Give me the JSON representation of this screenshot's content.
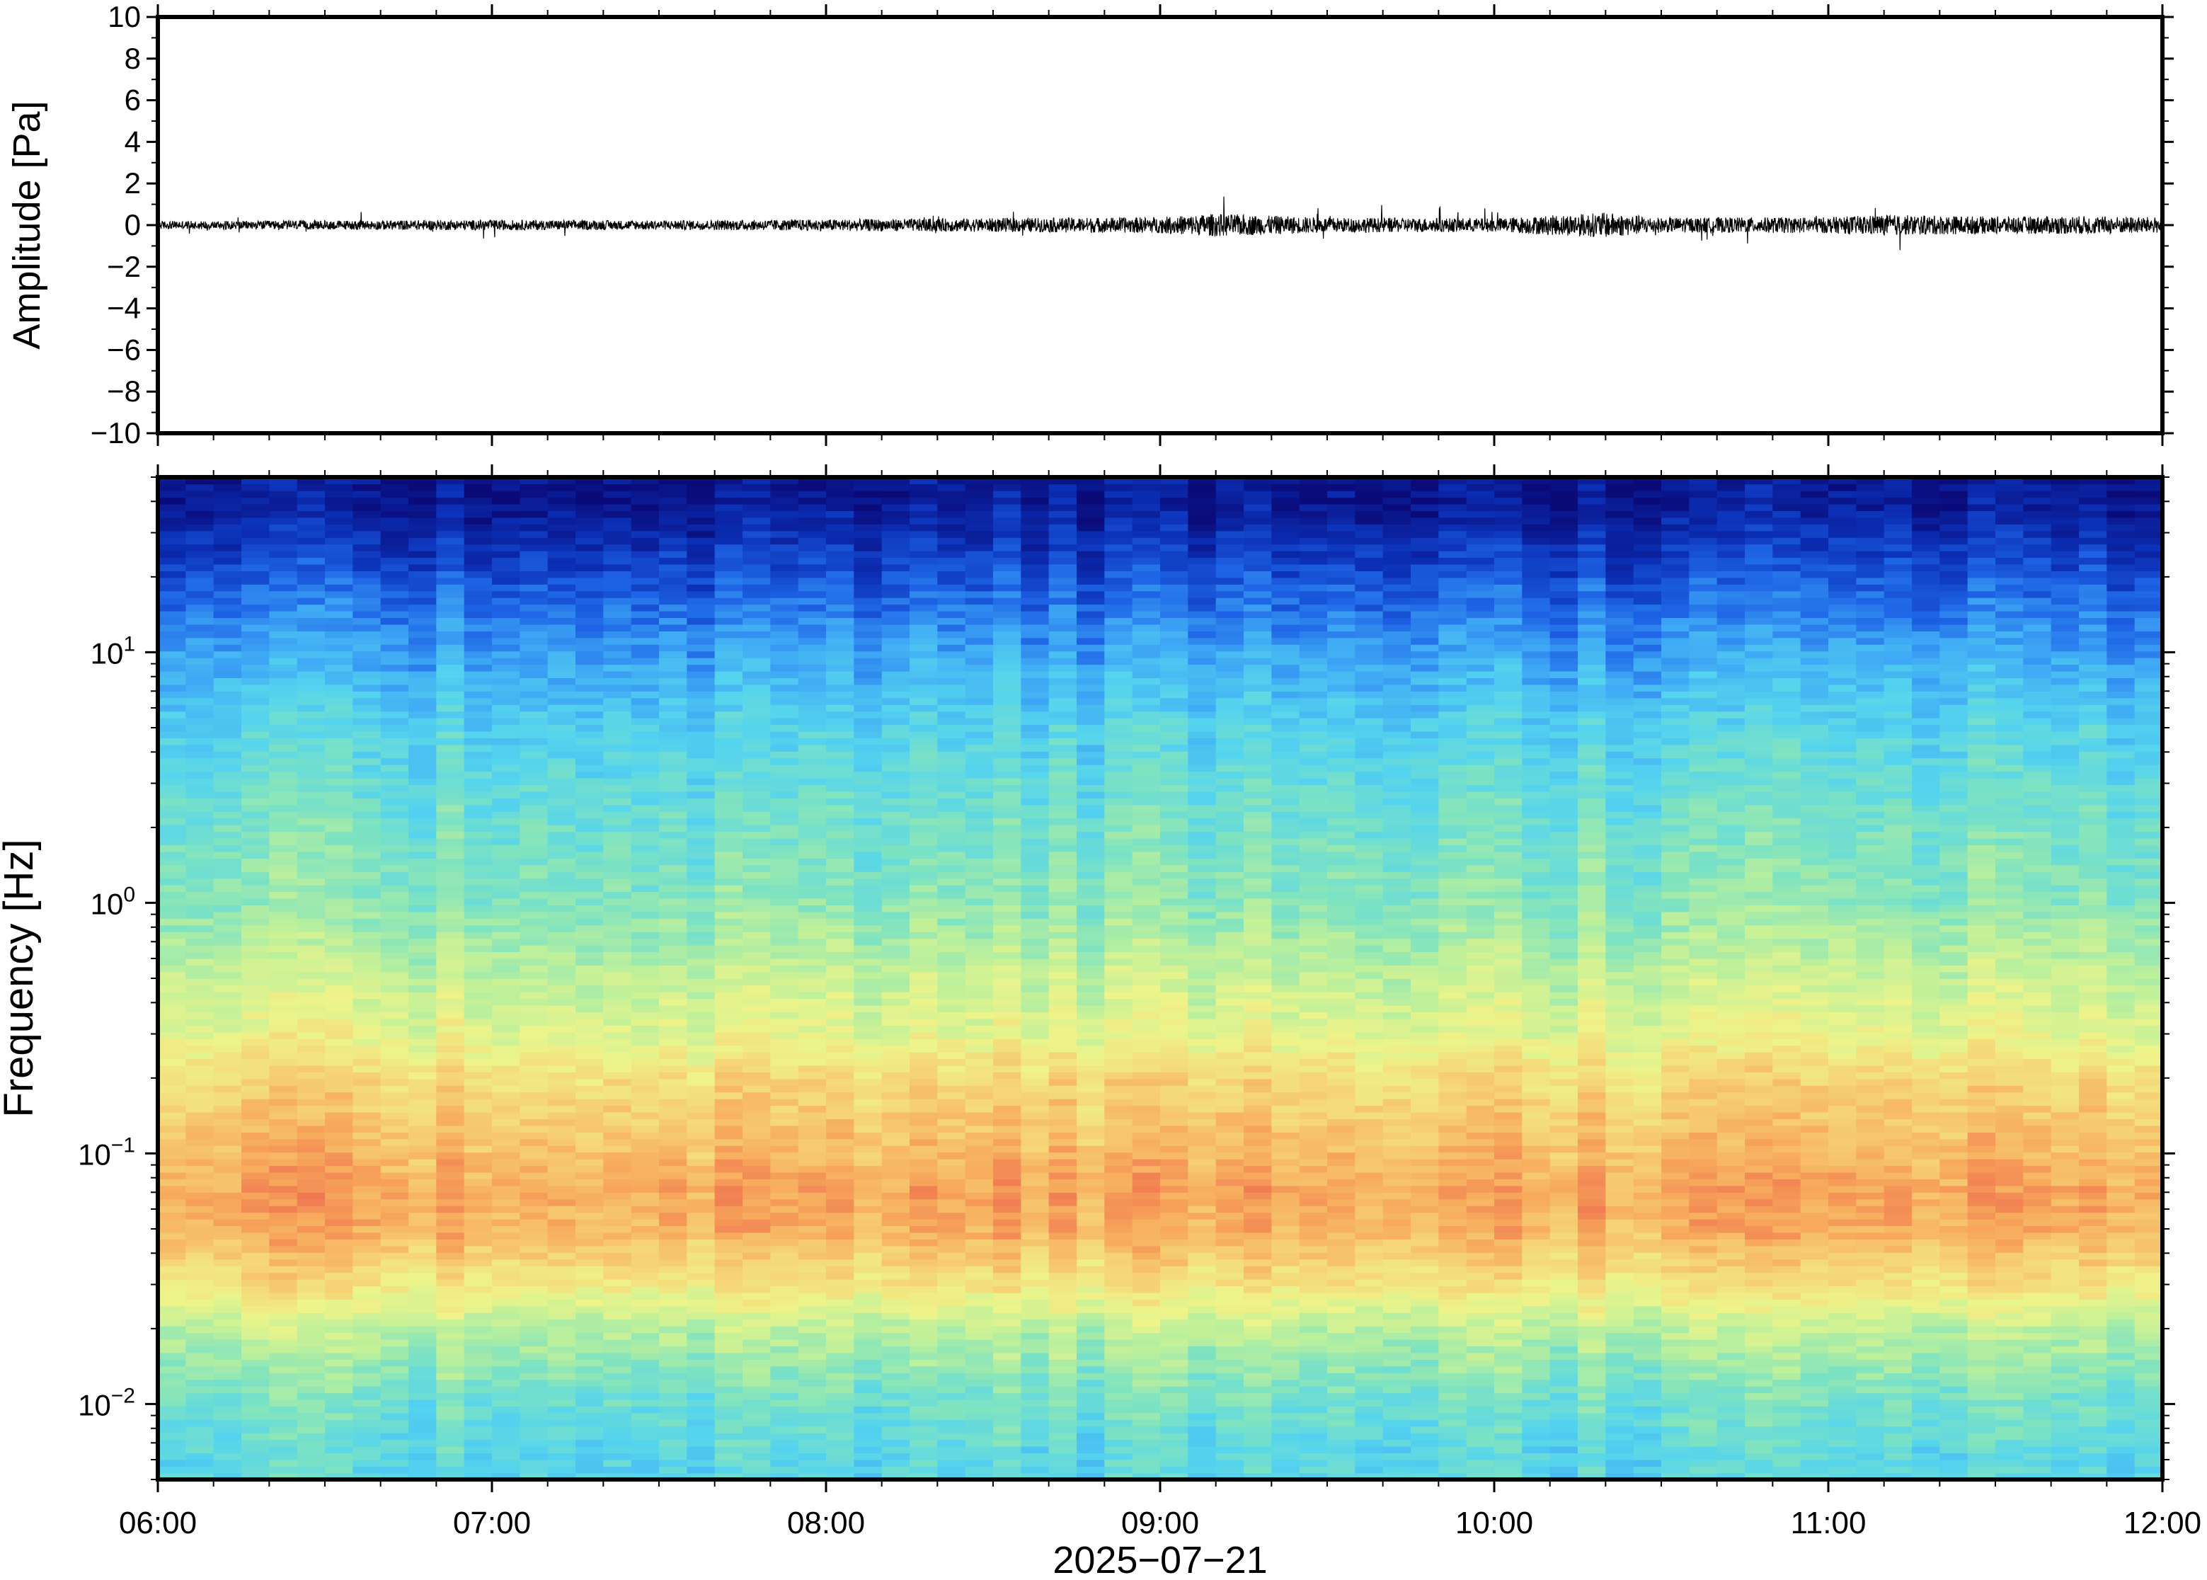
{
  "chart_data": [
    {
      "type": "line",
      "title": "",
      "ylabel": "Amplitude [Pa]",
      "ylim": [
        -10,
        10
      ],
      "yticks": [
        10,
        8,
        6,
        4,
        2,
        0,
        -2,
        -4,
        -6,
        -8,
        -10
      ],
      "ytick_labels": [
        "10",
        "8",
        "6",
        "4",
        "2",
        "0",
        "−2",
        "−4",
        "−6",
        "−8",
        "−10"
      ],
      "xlim": [
        "06:00",
        "12:00"
      ],
      "line_color": "#000000",
      "series": [
        {
          "x_minutes_from_0600": [
            0,
            30,
            60,
            90,
            120,
            150,
            180,
            190,
            210,
            240,
            260,
            270,
            300,
            310,
            330,
            345,
            360
          ],
          "envelope_pa": [
            0.35,
            0.4,
            0.45,
            0.4,
            0.5,
            0.6,
            0.7,
            1.0,
            0.65,
            0.6,
            1.1,
            0.65,
            0.7,
            0.9,
            0.75,
            0.8,
            0.7
          ]
        }
      ]
    },
    {
      "type": "heatmap",
      "title": "",
      "ylabel": "Frequency [Hz]",
      "xlabel": "2025−07−21",
      "y_scale": "log",
      "ylim_hz": [
        0.005,
        50
      ],
      "yticks_hz": [
        0.01,
        0.1,
        1,
        10
      ],
      "ytick_labels": [
        {
          "base": "10",
          "exp": "−2"
        },
        {
          "base": "10",
          "exp": "−1"
        },
        {
          "base": "10",
          "exp": "0"
        },
        {
          "base": "10",
          "exp": "1"
        }
      ],
      "xticks": [
        "06:00",
        "07:00",
        "08:00",
        "09:00",
        "10:00",
        "11:00",
        "12:00"
      ],
      "colormap": [
        "#0a0a78",
        "#0b2fb5",
        "#1e64e6",
        "#3fa9f5",
        "#55d4ee",
        "#7fe3c0",
        "#bff09a",
        "#eef48a",
        "#f6d476",
        "#f7a95c",
        "#ee6a4e"
      ],
      "spectral_profile": [
        {
          "freq_hz": 0.006,
          "level": 0.42
        },
        {
          "freq_hz": 0.01,
          "level": 0.47
        },
        {
          "freq_hz": 0.02,
          "level": 0.6
        },
        {
          "freq_hz": 0.03,
          "level": 0.75
        },
        {
          "freq_hz": 0.05,
          "level": 0.88
        },
        {
          "freq_hz": 0.07,
          "level": 0.9
        },
        {
          "freq_hz": 0.1,
          "level": 0.86
        },
        {
          "freq_hz": 0.2,
          "level": 0.78
        },
        {
          "freq_hz": 0.3,
          "level": 0.68
        },
        {
          "freq_hz": 0.5,
          "level": 0.62
        },
        {
          "freq_hz": 1,
          "level": 0.52
        },
        {
          "freq_hz": 2,
          "level": 0.48
        },
        {
          "freq_hz": 5,
          "level": 0.4
        },
        {
          "freq_hz": 10,
          "level": 0.3
        },
        {
          "freq_hz": 20,
          "level": 0.17
        },
        {
          "freq_hz": 40,
          "level": 0.04
        }
      ]
    }
  ]
}
